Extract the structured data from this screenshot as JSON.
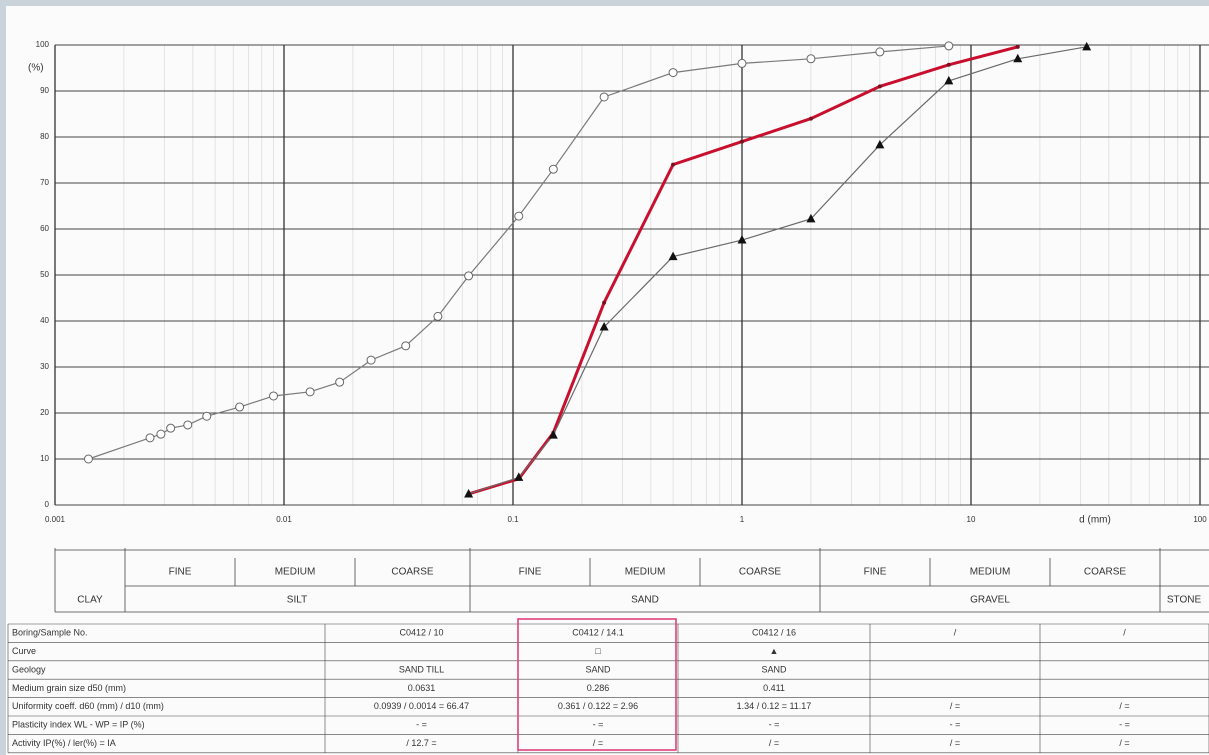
{
  "chart_data": {
    "type": "line",
    "y_axis_unit": "(%)",
    "x_axis_label": "d (mm)",
    "xscale": "log",
    "xminor": true,
    "grid": true,
    "xlim": [
      0.001,
      100
    ],
    "xticks": [
      0.001,
      0.01,
      0.1,
      1,
      10,
      100
    ],
    "ylim": [
      0,
      100
    ],
    "yticks": [
      0,
      10,
      20,
      30,
      40,
      50,
      60,
      70,
      80,
      90,
      100
    ],
    "series": [
      {
        "name": "C0412 / 10",
        "color": "#7a7a7a",
        "marker": "circle",
        "x": [
          0.0014,
          0.0026,
          0.0029,
          0.0032,
          0.0038,
          0.0046,
          0.0064,
          0.009,
          0.013,
          0.0175,
          0.024,
          0.034,
          0.047,
          0.064,
          0.106,
          0.15,
          0.25,
          0.5,
          1,
          2,
          4,
          8
        ],
        "values": [
          10,
          14.6,
          15.4,
          16.7,
          17.4,
          19.3,
          21.3,
          23.7,
          24.6,
          26.7,
          31.5,
          34.6,
          41,
          49.8,
          62.8,
          73,
          88.7,
          94,
          96,
          97,
          98.5,
          99.8
        ]
      },
      {
        "name": "C0412 / 14.1",
        "color": "#c8102e",
        "marker": "dot",
        "x": [
          0.064,
          0.106,
          0.15,
          0.25,
          0.5,
          1,
          2,
          4,
          8,
          16
        ],
        "values": [
          2.4,
          5.7,
          15.7,
          44,
          74,
          79,
          84,
          91,
          95.7,
          99.6
        ]
      },
      {
        "name": "C0412 / 16",
        "color": "#6a6a6a",
        "marker": "triangle",
        "x": [
          0.064,
          0.106,
          0.15,
          0.25,
          0.5,
          1,
          2,
          4,
          8,
          16,
          32
        ],
        "values": [
          2.4,
          6,
          15.2,
          38.7,
          54,
          57.6,
          62.2,
          78.3,
          92.2,
          97,
          99.6
        ]
      }
    ]
  },
  "classification": {
    "subgroups": [
      "FINE",
      "MEDIUM",
      "COARSE",
      "FINE",
      "MEDIUM",
      "COARSE",
      "FINE",
      "MEDIUM",
      "COARSE"
    ],
    "groups": [
      "CLAY",
      "SILT",
      "SAND",
      "GRAVEL",
      "STONE"
    ]
  },
  "table": {
    "rows": [
      [
        "Boring/Sample No.",
        "C0412  /  10",
        "C0412  /  14.1",
        "C0412  /  16",
        "/",
        "/"
      ],
      [
        "Curve",
        null,
        "□",
        "▲",
        null,
        null
      ],
      [
        "Geology",
        "SAND TILL",
        "SAND",
        "SAND",
        null,
        null
      ],
      [
        "Medium grain size  d50  (mm)",
        "0.0631",
        "0.286",
        "0.411",
        null,
        null
      ],
      [
        "Uniformity coeff.  d60 (mm) / d10 (mm)",
        "0.0939 / 0.0014  =  66.47",
        "0.361 / 0.122  =  2.96",
        "1.34 / 0.12  =  11.17",
        "/     =",
        "/     ="
      ],
      [
        "Plasticity index  WL - WP = IP (%)",
        "-     =",
        "-     =",
        "-     =",
        "-     =",
        "-     ="
      ],
      [
        "Activity  IP(%) / ler(%) = IA",
        "/ 12.7  =",
        "/     =",
        "/     =",
        "/     =",
        "/     ="
      ]
    ]
  }
}
